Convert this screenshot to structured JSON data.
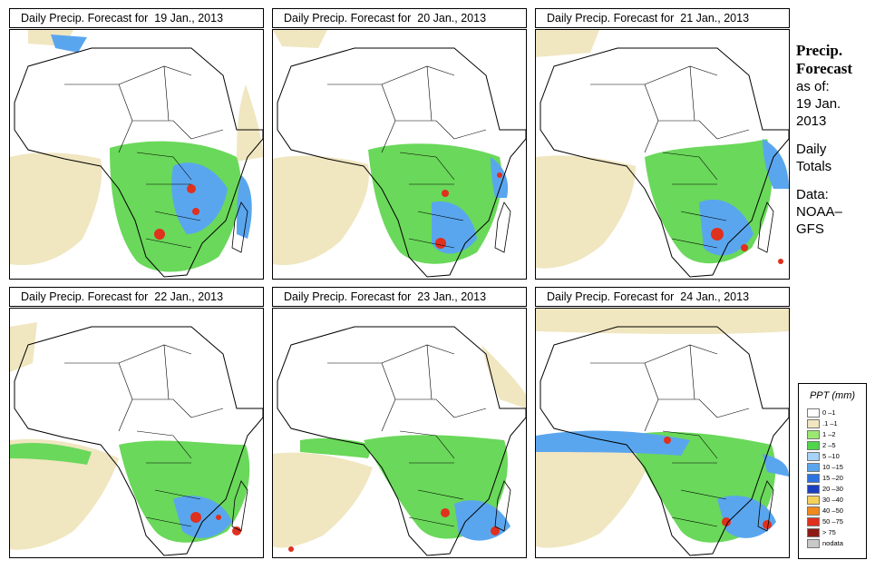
{
  "panels": [
    {
      "title": "Daily Precip. Forecast for  19 Jan., 2013"
    },
    {
      "title": "Daily Precip. Forecast for  20 Jan., 2013"
    },
    {
      "title": "Daily Precip. Forecast for  21 Jan., 2013"
    },
    {
      "title": "Daily Precip. Forecast for  22 Jan., 2013"
    },
    {
      "title": "Daily Precip. Forecast for  23 Jan., 2013"
    },
    {
      "title": "Daily Precip. Forecast for  24 Jan., 2013"
    }
  ],
  "sidebar": {
    "line1": "Precip.",
    "line2": "Forecast",
    "asof": "as of:",
    "date1": "19 Jan.",
    "date2": "2013",
    "daily1": "Daily",
    "daily2": "Totals",
    "data1": "Data:",
    "data2": "NOAA–",
    "data3": "GFS"
  },
  "legend": {
    "title": "PPT (mm)",
    "items": [
      {
        "label": "0 –1",
        "color": "#ffffff"
      },
      {
        "label": ".1 –1",
        "color": "#f0e6c0"
      },
      {
        "label": "1 –2",
        "color": "#9be870"
      },
      {
        "label": "2 –5",
        "color": "#4fd64a"
      },
      {
        "label": "5 –10",
        "color": "#a6d2f6"
      },
      {
        "label": "10 –15",
        "color": "#5aa6ee"
      },
      {
        "label": "15 –20",
        "color": "#2e72e0"
      },
      {
        "label": "20 –30",
        "color": "#1a3fbf"
      },
      {
        "label": "30 –40",
        "color": "#f5d15a"
      },
      {
        "label": "40 –50",
        "color": "#f08a1e"
      },
      {
        "label": "50 –75",
        "color": "#e0301e"
      },
      {
        "label": "> 75",
        "color": "#8c1a12"
      },
      {
        "label": "nodata",
        "color": "#c8c8c8"
      }
    ]
  }
}
